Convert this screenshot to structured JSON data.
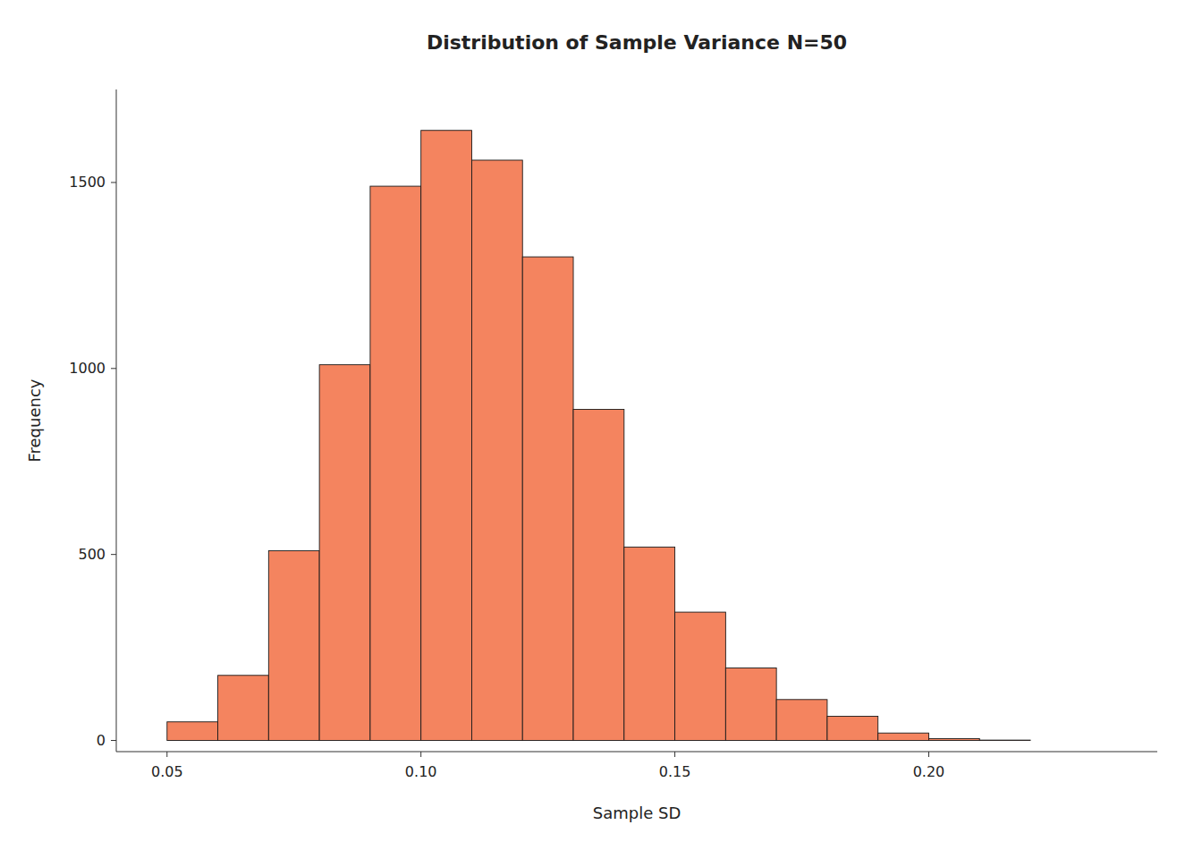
{
  "chart_data": {
    "type": "histogram",
    "title": "Distribution of Sample Variance N=50",
    "x_label": "Sample SD",
    "y_label": "Frequency",
    "bins": [
      0.05,
      0.06,
      0.07,
      0.08,
      0.09,
      0.1,
      0.11,
      0.12,
      0.13,
      0.14,
      0.15,
      0.16,
      0.17,
      0.18,
      0.19,
      0.2,
      0.21,
      0.22,
      0.23
    ],
    "values": [
      50,
      175,
      510,
      1010,
      1490,
      1640,
      1560,
      1300,
      890,
      520,
      345,
      195,
      110,
      65,
      20,
      5,
      1,
      0
    ],
    "color": "#F4845F",
    "xlim": [
      0.04,
      0.245
    ],
    "ylim": [
      -30,
      1750
    ],
    "xticks": [
      0.05,
      {
        "value": 0.1,
        "label": "0.10"
      },
      0.15,
      {
        "value": 0.2,
        "label": "0.20"
      }
    ],
    "yticks": [
      0,
      500,
      1000,
      1500
    ],
    "grid": false
  }
}
